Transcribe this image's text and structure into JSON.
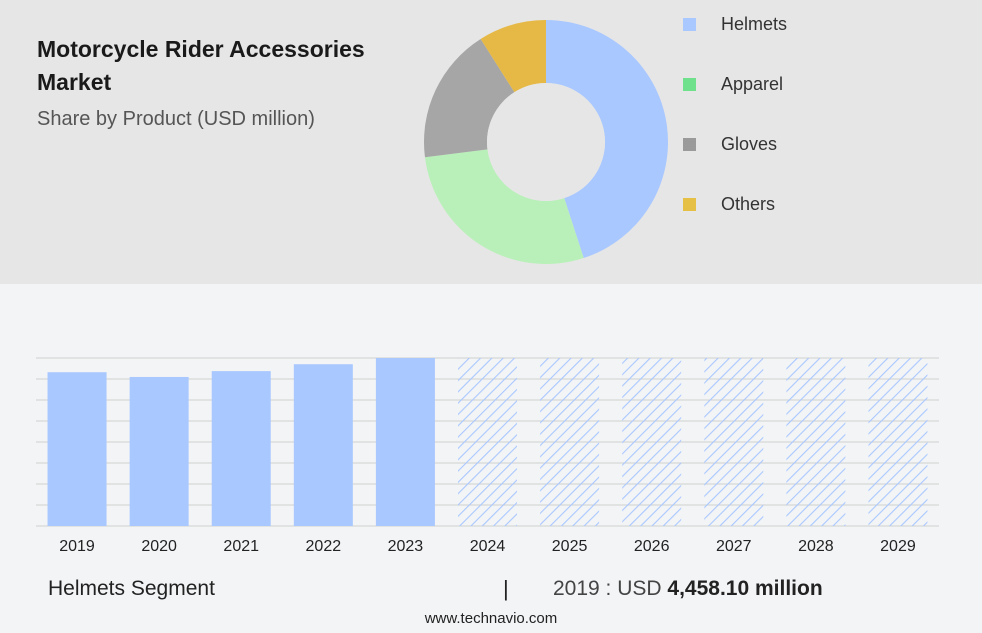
{
  "header": {
    "title": "Motorcycle Rider Accessories Market",
    "subtitle": "Share by Product (USD million)"
  },
  "chart_data": [
    {
      "type": "pie",
      "donut": true,
      "title": "Motorcycle Rider Accessories Market",
      "subtitle": "Share by Product (USD million)",
      "categories": [
        "Helmets",
        "Apparel",
        "Gloves",
        "Others"
      ],
      "values": [
        45,
        28,
        18,
        9
      ],
      "colors": [
        "#a9c8ff",
        "#b9f0b9",
        "#a6a6a6",
        "#e6b845"
      ],
      "legend_colors": [
        "#a9c8ff",
        "#6fe08c",
        "#9a9a9a",
        "#e6bf45"
      ],
      "legend_position": "right"
    },
    {
      "type": "bar",
      "categories": [
        "2019",
        "2020",
        "2021",
        "2022",
        "2023",
        "2024",
        "2025",
        "2026",
        "2027",
        "2028",
        "2029"
      ],
      "values": [
        4458.1,
        4320,
        4490,
        4690,
        4870,
        4870,
        4870,
        4870,
        4870,
        4870,
        4870
      ],
      "forecast": [
        false,
        false,
        false,
        false,
        false,
        true,
        true,
        true,
        true,
        true,
        true
      ],
      "ylim": [
        0,
        4870
      ],
      "grid": true,
      "bar_color": "#a9c8ff",
      "forecast_hatch_color": "#a9c8ff"
    }
  ],
  "footer": {
    "segment_label": "Helmets Segment",
    "separator": "|",
    "year_value_prefix": "2019 : USD",
    "year_value": "4,458.10 million",
    "site": "www.technavio.com"
  }
}
